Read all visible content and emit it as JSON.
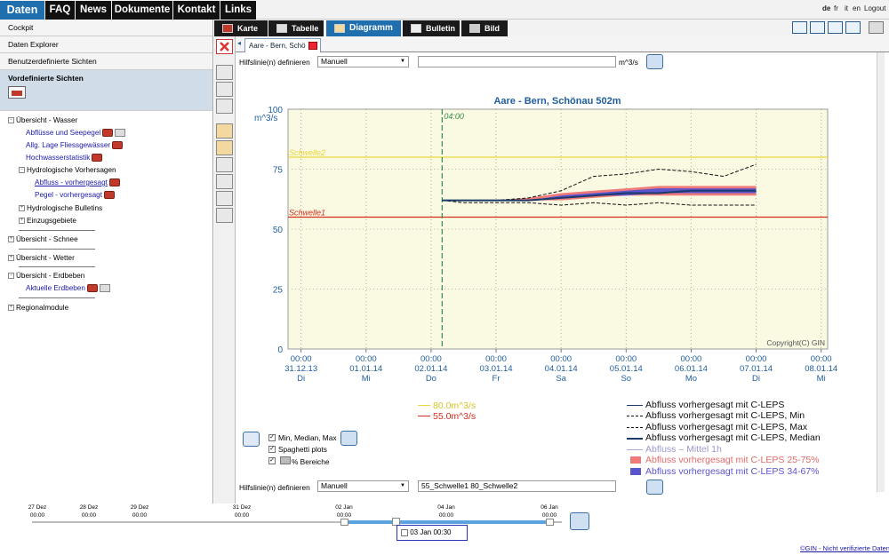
{
  "topnav": {
    "items": [
      "Daten",
      "FAQ",
      "News",
      "Dokumente",
      "Kontakt",
      "Links"
    ],
    "languages": [
      "de",
      "fr",
      "it",
      "en"
    ],
    "logout": "Logout"
  },
  "sidebar": {
    "items": [
      "Cockpit",
      "Daten Explorer",
      "Benutzerdefinierte Sichten",
      "Vordefinierte Sichten"
    ],
    "tree": {
      "wasser": "Übersicht - Wasser",
      "abfluesse": "Abflüsse und Seepegel",
      "lage": "Allg. Lage Fliessgewässer",
      "hochwasser": "Hochwasserstatistik",
      "vorhersagen": "Hydrologische Vorhersagen",
      "abfluss_vor": "Abfluss - vorhergesagt",
      "pegel_vor": "Pegel - vorhergesagt",
      "bulletins": "Hydrologische Bulletins",
      "einzug": "Einzugsgebiete",
      "schnee": "Übersicht - Schnee",
      "wetter": "Übersicht - Wetter",
      "erdbeben": "Übersicht - Erdbeben",
      "aktuelle_erdbeben": "Aktuelle Erdbeben",
      "regional": "Regionalmodule"
    }
  },
  "tabs": [
    "Karte",
    "Tabelle",
    "Diagramm",
    "Bulletin",
    "Bild"
  ],
  "subtab": "Aare - Bern, Schö",
  "hilfslinie_top": {
    "label": "Hilfslinie(n) definieren",
    "select": "Manuell",
    "value": "",
    "unit": "m^3/s"
  },
  "hilfslinie_bottom": {
    "label": "Hilfslinie(n) definieren",
    "select": "Manuell",
    "value": "55_Schwelle1 80_Schwelle2"
  },
  "options": {
    "mmm": "Min, Median, Max",
    "spaghetti": "Spaghetti plots",
    "bereiche": "% Bereiche"
  },
  "legend_left": [
    "80.0m^3/s",
    "55.0m^3/s"
  ],
  "legend_right": [
    "Abfluss vorhergesagt mit C-LEPS",
    "Abfluss vorhergesagt mit C-LEPS, Min",
    "Abfluss vorhergesagt mit C-LEPS, Max",
    "Abfluss vorhergesagt mit C-LEPS, Median",
    "Abfluss – Mittel 1h",
    "Abfluss vorhergesagt mit C-LEPS 25-75%",
    "Abfluss vorhergesagt mit C-LEPS 34-67%"
  ],
  "timeline": {
    "labels": [
      {
        "d": "27 Dez",
        "t": "00:00"
      },
      {
        "d": "28 Dez",
        "t": "00:00"
      },
      {
        "d": "29 Dez",
        "t": "00:00"
      },
      {
        "d": "31 Dez",
        "t": "00:00"
      },
      {
        "d": "02 Jan",
        "t": "00:00"
      },
      {
        "d": "04 Jan",
        "t": "00:00"
      },
      {
        "d": "06 Jan",
        "t": "00:00"
      }
    ],
    "current": "03 Jan 00:30"
  },
  "footer": "©GIN - Nicht verifizierte Daten",
  "colors": {
    "threshold2": "#e8d63a",
    "threshold1": "#d42d1f",
    "band25_75": "#f07a7a",
    "band34_67": "#5a55cc",
    "forecast": "#1a3a6a"
  },
  "chart_data": {
    "type": "line",
    "title": "Aare - Bern, Schönau 502m",
    "ylabel": "m^3/s",
    "ylim": [
      0,
      100
    ],
    "yticks": [
      0,
      25,
      50,
      75,
      100
    ],
    "xticks": [
      {
        "t": "00:00",
        "date": "31.12.13",
        "day": "Di"
      },
      {
        "t": "00:00",
        "date": "01.01.14",
        "day": "Mi"
      },
      {
        "t": "00:00",
        "date": "02.01.14",
        "day": "Do"
      },
      {
        "t": "00:00",
        "date": "03.01.14",
        "day": "Fr"
      },
      {
        "t": "00:00",
        "date": "04.01.14",
        "day": "Sa"
      },
      {
        "t": "00:00",
        "date": "05.01.14",
        "day": "So"
      },
      {
        "t": "00:00",
        "date": "06.01.14",
        "day": "Mo"
      },
      {
        "t": "00:00",
        "date": "07.01.14",
        "day": "Di"
      },
      {
        "t": "00:00",
        "date": "08.01.14",
        "day": "Mi"
      }
    ],
    "forecast_start_label": "04:00",
    "thresholds": [
      {
        "name": "Schwelle2",
        "value": 80
      },
      {
        "name": "Schwelle1",
        "value": 55
      }
    ],
    "copyright": "Copyright(C) GIN",
    "x_days_from_3112": [
      2.17,
      2.5,
      3.0,
      3.5,
      4.0,
      4.5,
      5.0,
      5.5,
      6.0,
      6.5,
      7.0
    ],
    "series": [
      {
        "name": "Abfluss vorhergesagt mit C-LEPS, Max",
        "values": [
          62,
          62,
          62,
          63,
          66,
          72,
          73,
          75,
          74,
          72,
          77
        ]
      },
      {
        "name": "Abfluss vorhergesagt mit C-LEPS, Min",
        "values": [
          62,
          61,
          61,
          61,
          60,
          61,
          60,
          61,
          60,
          60,
          60
        ]
      },
      {
        "name": "Abfluss vorhergesagt mit C-LEPS, Median",
        "values": [
          62,
          62,
          62,
          62,
          63,
          64,
          65,
          65,
          66,
          66,
          66
        ]
      },
      {
        "name": "Abfluss vorhergesagt mit C-LEPS 25-75% low",
        "values": [
          62,
          62,
          62,
          62,
          62,
          63,
          64,
          64,
          64,
          64,
          64
        ]
      },
      {
        "name": "Abfluss vorhergesagt mit C-LEPS 25-75% high",
        "values": [
          62,
          62,
          62,
          63,
          65,
          66,
          67,
          68,
          68,
          68,
          68
        ]
      },
      {
        "name": "Abfluss vorhergesagt mit C-LEPS 34-67% low",
        "values": [
          62,
          62,
          62,
          62,
          63,
          64,
          64,
          65,
          65,
          65,
          65
        ]
      },
      {
        "name": "Abfluss vorhergesagt mit C-LEPS 34-67% high",
        "values": [
          62,
          62,
          62,
          62,
          64,
          65,
          66,
          67,
          67,
          67,
          67
        ]
      }
    ]
  }
}
